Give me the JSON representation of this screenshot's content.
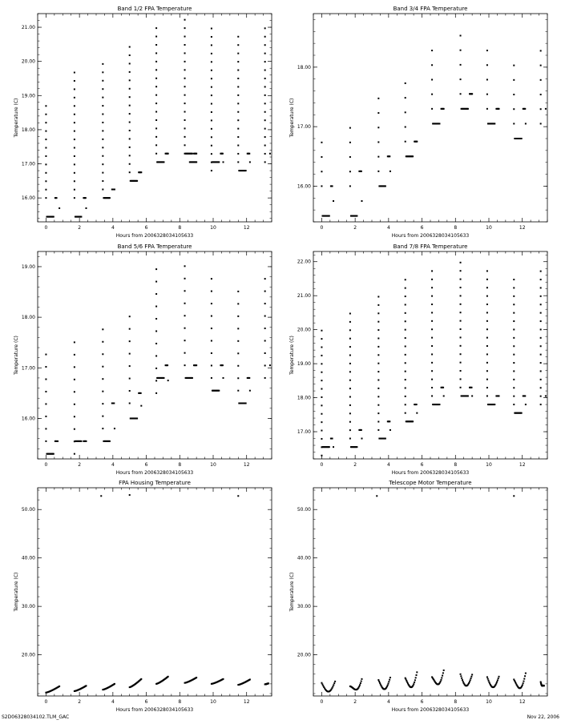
{
  "footer": {
    "left": "S2D06328034102.TLM_GAC",
    "right": "Nov 22, 2006"
  },
  "chart_data": [
    {
      "type": "scatter",
      "title": "Band 1/2 FPA Temperature",
      "xlabel": "Hours from 2006328034105633",
      "ylabel": "Temperature (C)",
      "xlim": [
        -0.5,
        13.5
      ],
      "ylim": [
        15.3,
        21.4
      ],
      "xticks": [
        0,
        2,
        4,
        6,
        8,
        10,
        12
      ],
      "yticks": [
        16,
        17,
        18,
        19,
        20,
        21
      ],
      "ytick_labels": [
        "16.00",
        "17.00",
        "18.00",
        "19.00",
        "20.00",
        "21.00"
      ],
      "grid": false,
      "clusters": [
        {
          "x_start": 0.0,
          "x_end": 0.8,
          "base": 15.45,
          "peak": 18.9,
          "dense": [
            15.45
          ],
          "dense_left": 16.0,
          "upper": [
            16.0
          ]
        },
        {
          "x_start": 1.7,
          "x_end": 2.4,
          "base": 15.45,
          "peak": 19.7,
          "dense": [
            15.45
          ],
          "dense_left": 16.0,
          "upper": [
            16.0
          ]
        },
        {
          "x_start": 3.4,
          "x_end": 4.1,
          "base": 16.0,
          "peak": 20.0,
          "dense": [
            16.0
          ],
          "dense_left": 16.25,
          "upper": [
            16.25
          ]
        },
        {
          "x_start": 5.0,
          "x_end": 5.7,
          "base": 16.5,
          "peak": 20.5,
          "dense": [
            16.5
          ],
          "dense_left": 16.75,
          "upper": [
            16.75
          ]
        },
        {
          "x_start": 6.6,
          "x_end": 7.3,
          "base": 17.05,
          "peak": 21.05,
          "dense": [
            17.05
          ],
          "dense_left": 17.3,
          "upper": [
            17.3
          ]
        },
        {
          "x_start": 8.3,
          "x_end": 9.0,
          "base": 17.05,
          "peak": 21.3,
          "dense": [
            17.3,
            17.05
          ],
          "dense_left": 17.3,
          "upper": [
            17.3
          ]
        },
        {
          "x_start": 9.9,
          "x_end": 10.6,
          "base": 16.8,
          "peak": 21.0,
          "dense": [
            17.05
          ],
          "dense_left": 16.8,
          "upper": [
            17.3
          ]
        },
        {
          "x_start": 11.5,
          "x_end": 12.2,
          "base": 16.8,
          "peak": 20.8,
          "dense": [
            16.8
          ],
          "dense_left": 17.05,
          "upper": [
            17.3
          ]
        },
        {
          "x_start": 13.1,
          "x_end": 13.4,
          "base": 17.05,
          "peak": 21.0,
          "dense": [],
          "dense_left": 17.05,
          "upper": [
            17.3
          ]
        }
      ]
    },
    {
      "type": "scatter",
      "title": "Band 3/4 FPA Temperature",
      "xlabel": "Hours from 2006328034105633",
      "ylabel": "Temperature (C)",
      "xlim": [
        -0.5,
        13.5
      ],
      "ylim": [
        15.4,
        18.9
      ],
      "xticks": [
        0,
        2,
        4,
        6,
        8,
        10,
        12
      ],
      "yticks": [
        16,
        17,
        18
      ],
      "ytick_labels": [
        "16.00",
        "17.00",
        "18.00"
      ],
      "grid": false,
      "clusters": [
        {
          "x_start": 0.0,
          "x_end": 0.7,
          "base": 15.5,
          "peak": 16.85,
          "dense": [
            15.5
          ],
          "dense_left": 16.0,
          "upper": [
            16.0
          ]
        },
        {
          "x_start": 1.7,
          "x_end": 2.4,
          "base": 15.5,
          "peak": 17.15,
          "dense": [
            15.5
          ],
          "dense_left": 16.0,
          "upper": [
            16.25
          ]
        },
        {
          "x_start": 3.4,
          "x_end": 4.1,
          "base": 16.0,
          "peak": 17.65,
          "dense": [
            16.0
          ],
          "dense_left": 16.25,
          "upper": [
            16.5
          ]
        },
        {
          "x_start": 5.0,
          "x_end": 5.7,
          "base": 16.5,
          "peak": 17.95,
          "dense": [
            16.5
          ],
          "dense_left": 16.75,
          "upper": [
            16.75
          ]
        },
        {
          "x_start": 6.6,
          "x_end": 7.3,
          "base": 17.05,
          "peak": 18.45,
          "dense": [
            17.05
          ],
          "dense_left": 17.3,
          "upper": [
            17.3
          ]
        },
        {
          "x_start": 8.3,
          "x_end": 9.0,
          "base": 17.3,
          "peak": 18.7,
          "dense": [
            17.3
          ],
          "dense_left": 17.55,
          "upper": [
            17.55
          ]
        },
        {
          "x_start": 9.9,
          "x_end": 10.6,
          "base": 17.05,
          "peak": 18.45,
          "dense": [
            17.05
          ],
          "dense_left": 17.3,
          "upper": [
            17.3
          ]
        },
        {
          "x_start": 11.5,
          "x_end": 12.2,
          "base": 16.8,
          "peak": 18.25,
          "dense": [
            16.8
          ],
          "dense_left": 17.05,
          "upper": [
            17.3
          ]
        },
        {
          "x_start": 13.1,
          "x_end": 13.4,
          "base": 17.05,
          "peak": 18.45,
          "dense": [],
          "dense_left": 17.05,
          "upper": [
            17.3
          ]
        }
      ]
    },
    {
      "type": "scatter",
      "title": "Band 5/6 FPA Temperature",
      "xlabel": "Hours from 2006328034105633",
      "ylabel": "Temperature (C)",
      "xlim": [
        -0.5,
        13.5
      ],
      "ylim": [
        15.2,
        19.3
      ],
      "xticks": [
        0,
        2,
        4,
        6,
        8,
        10,
        12
      ],
      "yticks": [
        16,
        17,
        18,
        19
      ],
      "ytick_labels": [
        "16.00",
        "17.00",
        "18.00",
        "19.00"
      ],
      "grid": false,
      "clusters": [
        {
          "x_start": 0.0,
          "x_end": 0.7,
          "base": 15.3,
          "peak": 17.3,
          "dense": [
            15.3
          ],
          "dense_left": 15.55,
          "upper": [
            15.55
          ]
        },
        {
          "x_start": 1.7,
          "x_end": 2.4,
          "base": 15.3,
          "peak": 17.6,
          "dense": [
            15.55
          ],
          "dense_left": 15.3,
          "upper": [
            15.55
          ]
        },
        {
          "x_start": 3.4,
          "x_end": 4.1,
          "base": 15.55,
          "peak": 17.85,
          "dense": [
            15.55
          ],
          "dense_left": 15.8,
          "upper": [
            16.3
          ]
        },
        {
          "x_start": 5.0,
          "x_end": 5.7,
          "base": 16.0,
          "peak": 18.15,
          "dense": [
            16.0
          ],
          "dense_left": 16.3,
          "upper": [
            16.5
          ]
        },
        {
          "x_start": 6.6,
          "x_end": 7.3,
          "base": 16.5,
          "peak": 18.95,
          "dense": [
            16.8
          ],
          "dense_left": 16.5,
          "upper": [
            17.05
          ]
        },
        {
          "x_start": 8.3,
          "x_end": 9.0,
          "base": 16.8,
          "peak": 19.2,
          "dense": [
            16.8
          ],
          "dense_left": 17.05,
          "upper": [
            17.05
          ]
        },
        {
          "x_start": 9.9,
          "x_end": 10.6,
          "base": 16.55,
          "peak": 18.95,
          "dense": [
            16.55
          ],
          "dense_left": 16.8,
          "upper": [
            17.05
          ]
        },
        {
          "x_start": 11.5,
          "x_end": 12.2,
          "base": 16.3,
          "peak": 18.7,
          "dense": [
            16.3
          ],
          "dense_left": 16.55,
          "upper": [
            16.8
          ]
        },
        {
          "x_start": 13.1,
          "x_end": 13.4,
          "base": 16.8,
          "peak": 18.95,
          "dense": [],
          "dense_left": 16.8,
          "upper": [
            17.05
          ]
        }
      ]
    },
    {
      "type": "scatter",
      "title": "Band 7/8 FPA Temperature",
      "xlabel": "Hours from 2006328034105633",
      "ylabel": "Temperature (C)",
      "xlim": [
        -0.5,
        13.5
      ],
      "ylim": [
        16.2,
        22.3
      ],
      "xticks": [
        0,
        2,
        4,
        6,
        8,
        10,
        12
      ],
      "yticks": [
        17,
        18,
        19,
        20,
        21,
        22
      ],
      "ytick_labels": [
        "17.00",
        "18.00",
        "19.00",
        "20.00",
        "21.00",
        "22.00"
      ],
      "grid": false,
      "clusters": [
        {
          "x_start": 0.0,
          "x_end": 0.7,
          "base": 16.3,
          "peak": 20.0,
          "dense": [
            16.55
          ],
          "dense_left": 16.3,
          "upper": [
            16.8
          ]
        },
        {
          "x_start": 1.7,
          "x_end": 2.4,
          "base": 16.55,
          "peak": 20.5,
          "dense": [
            16.55
          ],
          "dense_left": 16.8,
          "upper": [
            17.05
          ]
        },
        {
          "x_start": 3.4,
          "x_end": 4.1,
          "base": 16.8,
          "peak": 21.05,
          "dense": [
            16.8
          ],
          "dense_left": 17.05,
          "upper": [
            17.3
          ]
        },
        {
          "x_start": 5.0,
          "x_end": 5.7,
          "base": 17.3,
          "peak": 21.5,
          "dense": [
            17.3
          ],
          "dense_left": 17.55,
          "upper": [
            17.8
          ]
        },
        {
          "x_start": 6.6,
          "x_end": 7.3,
          "base": 17.8,
          "peak": 21.85,
          "dense": [
            17.8
          ],
          "dense_left": 18.05,
          "upper": [
            18.3
          ]
        },
        {
          "x_start": 8.3,
          "x_end": 9.0,
          "base": 17.8,
          "peak": 22.1,
          "dense": [
            18.05
          ],
          "dense_left": 18.3,
          "upper": [
            18.3
          ]
        },
        {
          "x_start": 9.9,
          "x_end": 10.6,
          "base": 17.8,
          "peak": 21.85,
          "dense": [
            17.8
          ],
          "dense_left": 18.05,
          "upper": [
            18.05
          ]
        },
        {
          "x_start": 11.5,
          "x_end": 12.2,
          "base": 17.55,
          "peak": 21.6,
          "dense": [
            17.55
          ],
          "dense_left": 17.8,
          "upper": [
            18.05
          ]
        },
        {
          "x_start": 13.1,
          "x_end": 13.4,
          "base": 17.8,
          "peak": 21.85,
          "dense": [],
          "dense_left": 17.8,
          "upper": [
            18.05
          ]
        }
      ]
    },
    {
      "type": "scatter",
      "title": "FPA Housing Temperature",
      "xlabel": "Hours from 2006328034105633",
      "ylabel": "Temperature (C)",
      "xlim": [
        -0.5,
        13.5
      ],
      "ylim": [
        11.5,
        54.5
      ],
      "xticks": [
        0,
        2,
        4,
        6,
        8,
        10,
        12
      ],
      "yticks": [
        20,
        30,
        40,
        50
      ],
      "ytick_labels": [
        "20.00",
        "30.00",
        "40.00",
        "50.00"
      ],
      "grid": false,
      "arcs": [
        {
          "x_start": 0.0,
          "x_end": 0.8,
          "y_start": 12.2,
          "y_end": 13.5,
          "shape": "rise"
        },
        {
          "x_start": 1.7,
          "x_end": 2.4,
          "y_start": 12.5,
          "y_end": 13.6,
          "shape": "rise"
        },
        {
          "x_start": 3.4,
          "x_end": 4.1,
          "y_start": 12.8,
          "y_end": 14.0,
          "shape": "rise"
        },
        {
          "x_start": 5.0,
          "x_end": 5.7,
          "y_start": 13.3,
          "y_end": 15.0,
          "shape": "rise"
        },
        {
          "x_start": 6.6,
          "x_end": 7.3,
          "y_start": 14.0,
          "y_end": 15.5,
          "shape": "rise"
        },
        {
          "x_start": 8.3,
          "x_end": 9.0,
          "y_start": 14.2,
          "y_end": 15.3,
          "shape": "rise"
        },
        {
          "x_start": 9.9,
          "x_end": 10.6,
          "y_start": 14.0,
          "y_end": 15.0,
          "shape": "rise"
        },
        {
          "x_start": 11.5,
          "x_end": 12.2,
          "y_start": 13.8,
          "y_end": 14.9,
          "shape": "rise"
        },
        {
          "x_start": 13.1,
          "x_end": 13.3,
          "y_start": 13.9,
          "y_end": 14.1,
          "shape": "rise"
        }
      ],
      "outliers": [
        {
          "x": 3.3,
          "y": 52.8
        },
        {
          "x": 5.0,
          "y": 53.0
        },
        {
          "x": 11.5,
          "y": 52.8
        }
      ]
    },
    {
      "type": "scatter",
      "title": "Telescope Motor Temperature",
      "xlabel": "Hours from 2006328034105633",
      "ylabel": "Temperature (C)",
      "xlim": [
        -0.5,
        13.5
      ],
      "ylim": [
        11.5,
        54.5
      ],
      "xticks": [
        0,
        2,
        4,
        6,
        8,
        10,
        12
      ],
      "yticks": [
        20,
        30,
        40,
        50
      ],
      "ytick_labels": [
        "20.00",
        "30.00",
        "40.00",
        "50.00"
      ],
      "grid": false,
      "arcs": [
        {
          "x_start": 0.0,
          "x_end": 0.8,
          "y_start": 14.2,
          "y_end": 14.5,
          "y_min": 12.4,
          "shape": "u"
        },
        {
          "x_start": 1.7,
          "x_end": 2.4,
          "y_start": 13.5,
          "y_end": 15.0,
          "y_min": 12.8,
          "shape": "u"
        },
        {
          "x_start": 3.4,
          "x_end": 4.1,
          "y_start": 14.8,
          "y_end": 15.3,
          "y_min": 12.9,
          "shape": "u"
        },
        {
          "x_start": 5.0,
          "x_end": 5.7,
          "y_start": 15.2,
          "y_end": 16.4,
          "y_min": 13.3,
          "shape": "u"
        },
        {
          "x_start": 6.6,
          "x_end": 7.3,
          "y_start": 15.4,
          "y_end": 16.8,
          "y_min": 13.9,
          "shape": "u"
        },
        {
          "x_start": 8.3,
          "x_end": 9.0,
          "y_start": 16.0,
          "y_end": 15.9,
          "y_min": 13.6,
          "shape": "u"
        },
        {
          "x_start": 9.9,
          "x_end": 10.6,
          "y_start": 15.4,
          "y_end": 15.5,
          "y_min": 13.3,
          "shape": "u"
        },
        {
          "x_start": 11.5,
          "x_end": 12.2,
          "y_start": 14.9,
          "y_end": 16.2,
          "y_min": 13.1,
          "shape": "u"
        },
        {
          "x_start": 13.1,
          "x_end": 13.3,
          "y_start": 14.4,
          "y_end": 13.6,
          "y_min": 13.6,
          "shape": "u"
        }
      ],
      "outliers": [
        {
          "x": 3.3,
          "y": 52.8
        },
        {
          "x": 11.5,
          "y": 52.8
        }
      ]
    }
  ]
}
